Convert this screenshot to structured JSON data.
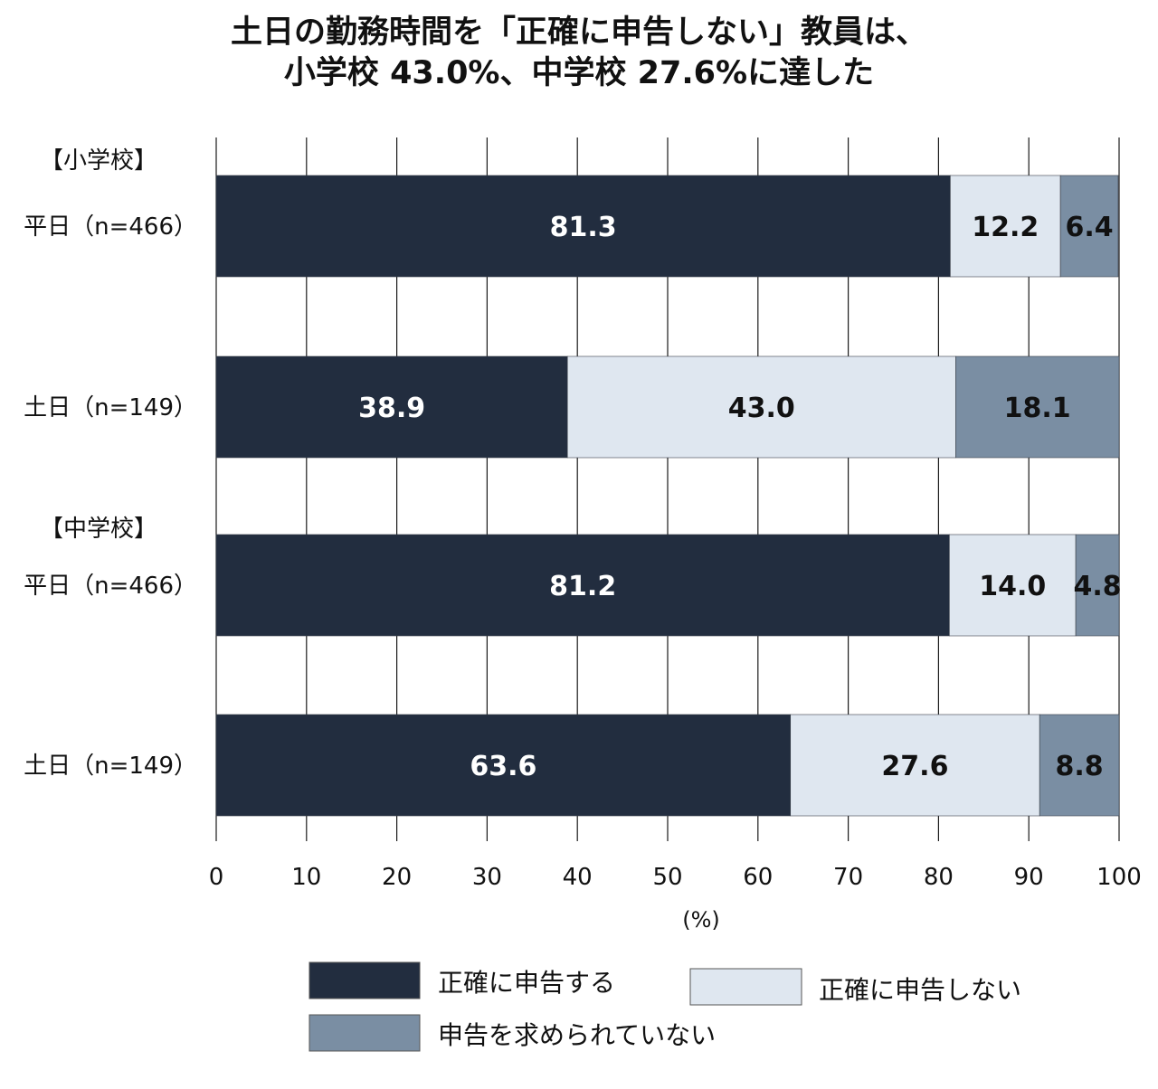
{
  "title": {
    "line1": "土日の勤務時間を「正確に申告しない」教員は、",
    "line2": "小学校 43.0%、中学校 27.6%に達した"
  },
  "colors": {
    "accurate": "#222d3f",
    "not_accurate": "#dfe7f0",
    "not_required": "#7a8ea3",
    "grid": "#1a1a1a",
    "label_on_dark": "#ffffff",
    "label_on_light": "#111111"
  },
  "chart_data": {
    "type": "bar",
    "orientation": "horizontal",
    "stacked": true,
    "title": "土日の勤務時間を「正確に申告しない」教員は、小学校 43.0%、中学校 27.6%に達した",
    "xlabel": "(%)",
    "ylabel": "",
    "xlim": [
      0,
      100
    ],
    "xticks": [
      "0",
      "10",
      "20",
      "30",
      "40",
      "50",
      "60",
      "70",
      "80",
      "90",
      "100"
    ],
    "grid": true,
    "legend_placement": "bottom",
    "groups": [
      {
        "label": "【小学校】",
        "rows": [
          {
            "label": "平日（n=466）",
            "values": [
              81.3,
              12.2,
              6.4
            ],
            "value_labels": [
              "81.3",
              "12.2",
              "6.4"
            ]
          },
          {
            "label": "土日（n=149）",
            "values": [
              38.9,
              43.0,
              18.1
            ],
            "value_labels": [
              "38.9",
              "43.0",
              "18.1"
            ]
          }
        ]
      },
      {
        "label": "【中学校】",
        "rows": [
          {
            "label": "平日（n=466）",
            "values": [
              81.2,
              14.0,
              4.8
            ],
            "value_labels": [
              "81.2",
              "14.0",
              "4.8"
            ]
          },
          {
            "label": "土日（n=149）",
            "values": [
              63.6,
              27.6,
              8.8
            ],
            "value_labels": [
              "63.6",
              "27.6",
              "8.8"
            ]
          }
        ]
      }
    ],
    "series": [
      {
        "name": "正確に申告する",
        "color": "#222d3f"
      },
      {
        "name": "正確に申告しない",
        "color": "#dfe7f0"
      },
      {
        "name": "申告を求められていない",
        "color": "#7a8ea3"
      }
    ]
  }
}
